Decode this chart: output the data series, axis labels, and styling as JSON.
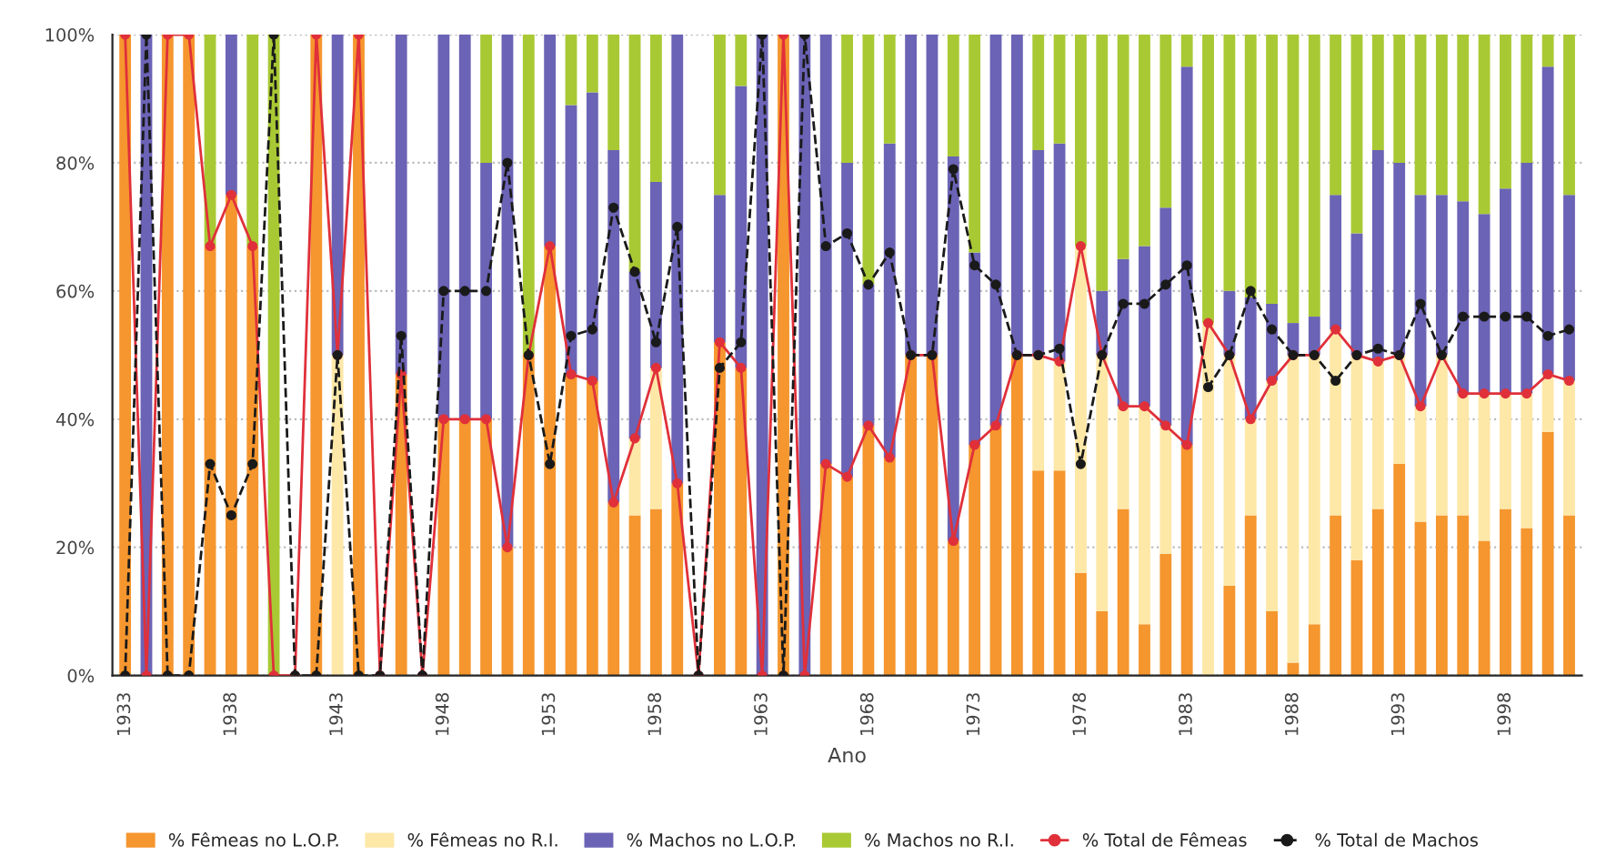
{
  "chart_data": {
    "type": "bar",
    "stacked": true,
    "xlabel": "Ano",
    "categories": [
      "1933",
      null,
      null,
      null,
      null,
      "1938",
      null,
      null,
      null,
      null,
      "1943",
      null,
      null,
      null,
      null,
      "1948",
      null,
      null,
      null,
      null,
      "1953",
      null,
      null,
      null,
      null,
      "1958",
      null,
      null,
      null,
      null,
      "1963",
      null,
      null,
      null,
      null,
      "1968",
      null,
      null,
      null,
      null,
      "1973",
      null,
      null,
      null,
      null,
      "1978",
      null,
      null,
      null,
      null,
      "1983",
      null,
      null,
      null,
      null,
      "1988",
      null,
      null,
      null,
      null,
      "1993",
      null,
      null,
      null,
      null,
      "1998",
      null,
      null,
      null
    ],
    "ylim": [
      0,
      100
    ],
    "yticks": [
      {
        "value": 0,
        "label": "0%"
      },
      {
        "value": 20,
        "label": "20%"
      },
      {
        "value": 40,
        "label": "40%"
      },
      {
        "value": 60,
        "label": "60%"
      },
      {
        "value": 80,
        "label": "80%"
      },
      {
        "value": 100,
        "label": "100%"
      }
    ],
    "grid": "y",
    "legend": "bottom",
    "series": [
      {
        "name": "% Fêmeas no L.O.P.",
        "color": "#f5962e",
        "values": [
          100,
          0,
          100,
          100,
          67,
          75,
          67,
          0,
          0,
          100,
          0,
          100,
          0,
          47,
          0,
          40,
          40,
          40,
          20,
          50,
          67,
          47,
          46,
          27,
          25,
          26,
          30,
          0,
          52,
          48,
          0,
          100,
          0,
          33,
          31,
          39,
          34,
          50,
          50,
          21,
          36,
          39,
          50,
          32,
          32,
          16,
          10,
          26,
          8,
          19,
          36,
          0,
          14,
          25,
          10,
          2,
          8,
          25,
          18,
          26,
          33,
          24,
          25,
          25,
          21,
          26,
          23,
          38,
          25
        ]
      },
      {
        "name": "% Fêmeas no R.I.",
        "color": "#fde8a8",
        "values": [
          0,
          0,
          0,
          0,
          0,
          0,
          0,
          0,
          0,
          0,
          50,
          0,
          0,
          0,
          0,
          0,
          0,
          0,
          0,
          0,
          0,
          0,
          0,
          0,
          12,
          22,
          0,
          0,
          0,
          0,
          0,
          0,
          0,
          0,
          0,
          0,
          0,
          0,
          0,
          0,
          0,
          0,
          0,
          18,
          17,
          51,
          40,
          16,
          34,
          20,
          0,
          55,
          36,
          15,
          36,
          48,
          42,
          29,
          32,
          23,
          17,
          18,
          25,
          19,
          23,
          18,
          21,
          9,
          21
        ]
      },
      {
        "name": "% Machos no L.O.P.",
        "color": "#6b63b5",
        "values": [
          0,
          100,
          0,
          0,
          0,
          25,
          0,
          0,
          0,
          0,
          50,
          0,
          0,
          53,
          0,
          60,
          60,
          40,
          80,
          0,
          33,
          42,
          45,
          55,
          26,
          29,
          70,
          0,
          23,
          44,
          100,
          0,
          100,
          67,
          49,
          22,
          49,
          50,
          50,
          60,
          30,
          61,
          50,
          32,
          34,
          0,
          10,
          23,
          25,
          34,
          59,
          0,
          10,
          19,
          12,
          5,
          6,
          21,
          19,
          33,
          30,
          33,
          25,
          30,
          28,
          32,
          36,
          48,
          29
        ]
      },
      {
        "name": "% Machos no R.I.",
        "color": "#a9c934",
        "values": [
          0,
          0,
          0,
          0,
          33,
          0,
          33,
          100,
          0,
          0,
          0,
          0,
          0,
          0,
          0,
          0,
          0,
          20,
          0,
          50,
          0,
          11,
          9,
          18,
          37,
          23,
          0,
          0,
          25,
          8,
          0,
          0,
          0,
          0,
          20,
          39,
          17,
          0,
          0,
          19,
          34,
          0,
          0,
          18,
          17,
          33,
          40,
          35,
          33,
          27,
          5,
          45,
          40,
          41,
          42,
          45,
          44,
          25,
          31,
          18,
          20,
          25,
          25,
          26,
          28,
          24,
          20,
          5,
          25
        ]
      },
      {
        "name": "% Total de Fêmeas",
        "type": "line",
        "color": "#e0303a",
        "marker": "circle",
        "line_style": "solid",
        "values": [
          100,
          0,
          100,
          100,
          67,
          75,
          67,
          0,
          0,
          100,
          50,
          100,
          0,
          47,
          0,
          40,
          40,
          40,
          20,
          50,
          67,
          47,
          46,
          27,
          37,
          48,
          30,
          0,
          52,
          48,
          0,
          100,
          0,
          33,
          31,
          39,
          34,
          50,
          50,
          21,
          36,
          39,
          50,
          50,
          49,
          67,
          50,
          42,
          42,
          39,
          36,
          55,
          50,
          40,
          46,
          50,
          50,
          54,
          50,
          49,
          50,
          42,
          50,
          44,
          44,
          44,
          44,
          47,
          46
        ]
      },
      {
        "name": "% Total de Machos",
        "type": "line",
        "color": "#1a1a1a",
        "marker": "circle",
        "line_style": "dashed",
        "values": [
          0,
          100,
          0,
          0,
          33,
          25,
          33,
          100,
          0,
          0,
          50,
          0,
          0,
          53,
          0,
          60,
          60,
          60,
          80,
          50,
          33,
          53,
          54,
          73,
          63,
          52,
          70,
          0,
          48,
          52,
          100,
          0,
          100,
          67,
          69,
          61,
          66,
          50,
          50,
          79,
          64,
          61,
          50,
          50,
          51,
          33,
          50,
          58,
          58,
          61,
          64,
          45,
          50,
          60,
          54,
          50,
          50,
          46,
          50,
          51,
          50,
          58,
          50,
          56,
          56,
          56,
          56,
          53,
          54
        ]
      }
    ]
  }
}
